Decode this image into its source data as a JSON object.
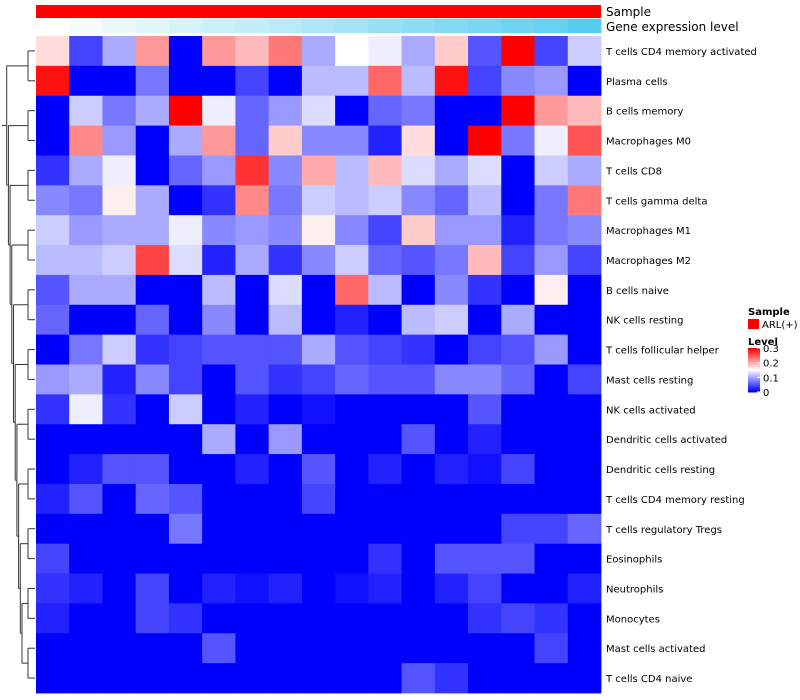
{
  "chart_data": {
    "type": "heatmap",
    "annotations": [
      {
        "name": "Sample",
        "legend_title": "Sample",
        "legend_entry": "ARL(+)",
        "color": "#ff0000"
      },
      {
        "name": "Gene expression level",
        "color_low": "#ffffff",
        "color_high": "#55ccee"
      }
    ],
    "legend": {
      "title": "Level",
      "ticks": [
        "0.3",
        "0.2",
        "0.1",
        "0"
      ],
      "range": [
        0,
        0.3
      ],
      "colors": {
        "low": "#0000ff",
        "mid": "#ffffff",
        "high": "#ff0000"
      }
    },
    "row_labels": [
      "T cells CD4 memory activated",
      "Plasma cells",
      "B cells memory",
      "Macrophages M0",
      "T cells CD8",
      "T cells gamma delta",
      "Macrophages M1",
      "Macrophages M2",
      "B cells naive",
      "NK cells resting",
      "T cells follicular helper",
      "Mast cells resting",
      "NK cells activated",
      "Dendritic cells activated",
      "Dendritic cells resting",
      "T cells CD4 memory resting",
      "T cells regulatory  Tregs",
      "Eosinophils",
      "Neutrophils",
      "Monocytes",
      "Mast cells activated",
      "T cells CD4 naive"
    ],
    "values": [
      [
        0.17,
        0.04,
        0.1,
        0.21,
        0.0,
        0.21,
        0.19,
        0.23,
        0.1,
        0.15,
        0.14,
        0.1,
        0.18,
        0.05,
        0.3,
        0.04,
        0.12
      ],
      [
        0.29,
        0.0,
        0.0,
        0.07,
        0.0,
        0.0,
        0.04,
        0.0,
        0.11,
        0.11,
        0.24,
        0.11,
        0.29,
        0.04,
        0.08,
        0.09,
        0.0
      ],
      [
        0.0,
        0.12,
        0.07,
        0.1,
        0.3,
        0.14,
        0.06,
        0.09,
        0.13,
        0.0,
        0.06,
        0.07,
        0.0,
        0.0,
        0.3,
        0.21,
        0.19
      ],
      [
        0.0,
        0.22,
        0.09,
        0.0,
        0.1,
        0.21,
        0.06,
        0.18,
        0.08,
        0.08,
        0.02,
        0.17,
        0.0,
        0.3,
        0.07,
        0.14,
        0.25
      ],
      [
        0.03,
        0.1,
        0.14,
        0.0,
        0.06,
        0.09,
        0.27,
        0.08,
        0.2,
        0.11,
        0.19,
        0.13,
        0.1,
        0.13,
        0.0,
        0.12,
        0.1
      ],
      [
        0.08,
        0.07,
        0.16,
        0.1,
        0.0,
        0.03,
        0.22,
        0.07,
        0.12,
        0.11,
        0.12,
        0.08,
        0.06,
        0.11,
        0.0,
        0.07,
        0.23
      ],
      [
        0.12,
        0.09,
        0.1,
        0.1,
        0.14,
        0.08,
        0.09,
        0.08,
        0.16,
        0.08,
        0.04,
        0.18,
        0.09,
        0.09,
        0.02,
        0.07,
        0.08
      ],
      [
        0.11,
        0.11,
        0.12,
        0.26,
        0.13,
        0.02,
        0.1,
        0.03,
        0.08,
        0.12,
        0.06,
        0.05,
        0.07,
        0.19,
        0.04,
        0.09,
        0.04
      ],
      [
        0.05,
        0.1,
        0.1,
        0.0,
        0.0,
        0.11,
        0.0,
        0.13,
        0.0,
        0.24,
        0.11,
        0.0,
        0.08,
        0.03,
        0.0,
        0.16,
        0.0
      ],
      [
        0.06,
        0.0,
        0.0,
        0.06,
        0.0,
        0.08,
        0.0,
        0.11,
        0.0,
        0.02,
        0.0,
        0.11,
        0.12,
        0.0,
        0.1,
        0.0,
        0.0
      ],
      [
        0.0,
        0.07,
        0.12,
        0.03,
        0.04,
        0.05,
        0.05,
        0.05,
        0.1,
        0.05,
        0.04,
        0.03,
        0.0,
        0.04,
        0.05,
        0.09,
        0.0
      ],
      [
        0.09,
        0.1,
        0.02,
        0.08,
        0.04,
        0.0,
        0.05,
        0.03,
        0.04,
        0.06,
        0.05,
        0.05,
        0.08,
        0.08,
        0.06,
        0.0,
        0.04
      ],
      [
        0.03,
        0.14,
        0.03,
        0.0,
        0.12,
        0.0,
        0.02,
        0.0,
        0.01,
        0.0,
        0.0,
        0.0,
        0.0,
        0.05,
        0.0,
        0.0,
        0.0
      ],
      [
        0.0,
        0.0,
        0.0,
        0.0,
        0.0,
        0.1,
        0.0,
        0.09,
        0.0,
        0.0,
        0.0,
        0.05,
        0.0,
        0.02,
        0.0,
        0.0,
        0.0
      ],
      [
        0.0,
        0.02,
        0.05,
        0.05,
        0.0,
        0.0,
        0.02,
        0.0,
        0.05,
        0.0,
        0.02,
        0.0,
        0.02,
        0.01,
        0.04,
        0.0,
        0.0
      ],
      [
        0.02,
        0.05,
        0.0,
        0.06,
        0.05,
        0.0,
        0.0,
        0.0,
        0.04,
        0.0,
        0.0,
        0.0,
        0.0,
        0.0,
        0.0,
        0.0,
        0.0
      ],
      [
        0.0,
        0.0,
        0.0,
        0.0,
        0.07,
        0.0,
        0.0,
        0.0,
        0.0,
        0.0,
        0.0,
        0.0,
        0.0,
        0.0,
        0.04,
        0.04,
        0.06
      ],
      [
        0.04,
        0.0,
        0.0,
        0.0,
        0.0,
        0.0,
        0.0,
        0.0,
        0.0,
        0.0,
        0.03,
        0.0,
        0.05,
        0.05,
        0.05,
        0.0,
        0.0
      ],
      [
        0.03,
        0.02,
        0.0,
        0.04,
        0.0,
        0.02,
        0.01,
        0.02,
        0.0,
        0.01,
        0.02,
        0.0,
        0.02,
        0.04,
        0.0,
        0.0,
        0.02
      ],
      [
        0.02,
        0.0,
        0.0,
        0.04,
        0.03,
        0.0,
        0.0,
        0.0,
        0.0,
        0.0,
        0.0,
        0.0,
        0.0,
        0.03,
        0.04,
        0.03,
        0.0
      ],
      [
        0.0,
        0.0,
        0.0,
        0.0,
        0.0,
        0.05,
        0.0,
        0.0,
        0.0,
        0.0,
        0.0,
        0.0,
        0.0,
        0.0,
        0.0,
        0.04,
        0.0
      ],
      [
        0.0,
        0.0,
        0.0,
        0.0,
        0.0,
        0.0,
        0.0,
        0.0,
        0.0,
        0.0,
        0.0,
        0.05,
        0.03,
        0.0,
        0.0,
        0.0,
        0.0
      ]
    ],
    "gene_expression_gradient": [
      0.0,
      0.06,
      0.12,
      0.18,
      0.24,
      0.3,
      0.36,
      0.42,
      0.48,
      0.54,
      0.6,
      0.66,
      0.72,
      0.78,
      0.84,
      0.9,
      1.0
    ],
    "dendrogram_merges": [
      [
        0,
        1
      ],
      [
        2,
        3
      ],
      [
        4,
        5
      ],
      [
        6,
        7
      ],
      [
        8,
        9
      ],
      [
        10,
        11
      ],
      [
        12,
        13
      ],
      [
        14,
        15
      ],
      [
        16,
        17
      ],
      [
        18,
        19
      ],
      [
        20,
        21
      ]
    ]
  }
}
